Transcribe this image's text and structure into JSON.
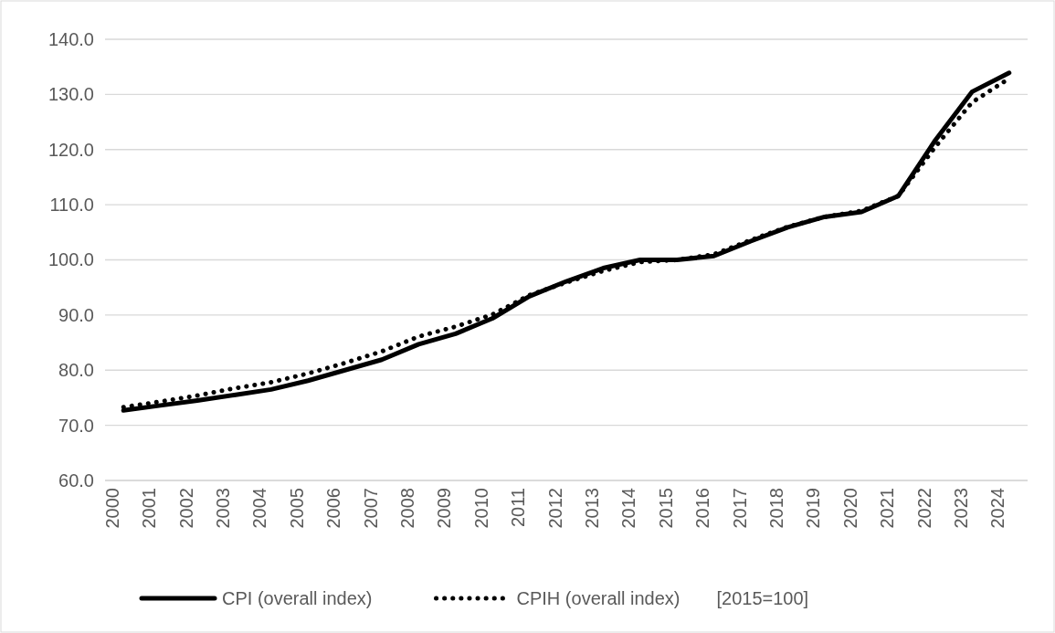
{
  "chart_data": {
    "type": "line",
    "categories": [
      "2000",
      "2001",
      "2002",
      "2003",
      "2004",
      "2005",
      "2006",
      "2007",
      "2008",
      "2009",
      "2010",
      "2011",
      "2012",
      "2013",
      "2014",
      "2015",
      "2016",
      "2017",
      "2018",
      "2019",
      "2020",
      "2021",
      "2022",
      "2023",
      "2024"
    ],
    "series": [
      {
        "name": "CPI (overall index)",
        "color": "#000000",
        "line_style": "solid",
        "values": [
          72.7,
          73.6,
          74.5,
          75.5,
          76.5,
          78.1,
          80.0,
          81.9,
          84.7,
          86.6,
          89.4,
          93.4,
          96.1,
          98.5,
          100.0,
          100.0,
          100.7,
          103.4,
          105.9,
          107.8,
          108.7,
          111.6,
          121.7,
          130.5,
          133.9
        ]
      },
      {
        "name": "CPIH (overall index)",
        "color": "#000000",
        "line_style": "dotted",
        "values": [
          73.3,
          74.3,
          75.4,
          76.7,
          77.8,
          79.4,
          81.3,
          83.4,
          86.1,
          87.9,
          90.1,
          93.6,
          95.9,
          98.0,
          99.6,
          100.0,
          101.0,
          103.6,
          106.0,
          107.8,
          108.9,
          111.6,
          120.5,
          128.6,
          132.9
        ]
      }
    ],
    "ylim": [
      60,
      140
    ],
    "yticks": [
      {
        "value": 60,
        "label": "60.0"
      },
      {
        "value": 70,
        "label": "70.0"
      },
      {
        "value": 80,
        "label": "80.0"
      },
      {
        "value": 90,
        "label": "90.0"
      },
      {
        "value": 100,
        "label": "100.0"
      },
      {
        "value": 110,
        "label": "110.0"
      },
      {
        "value": 120,
        "label": "120.0"
      },
      {
        "value": 130,
        "label": "130.0"
      },
      {
        "value": 140,
        "label": "140.0"
      }
    ],
    "grid": "y",
    "legend": "bottom",
    "marker": "none",
    "annotations": [
      "[2015=100]"
    ]
  }
}
